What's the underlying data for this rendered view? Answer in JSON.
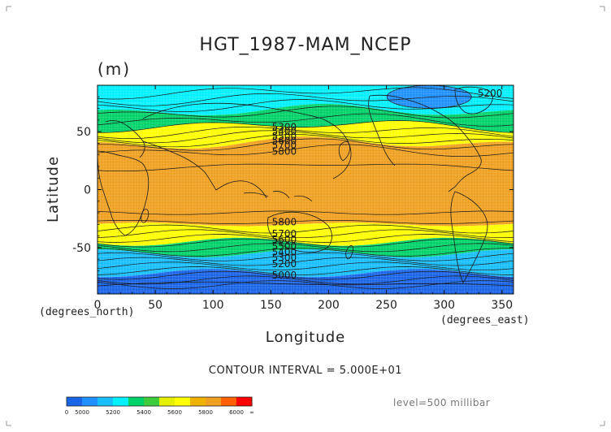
{
  "chart_data": {
    "type": "heatmap",
    "title": "HGT_1987-MAM_NCEP",
    "units": "(m)",
    "xlabel": "Longitude",
    "ylabel": "Latitude",
    "x_unit_label": "(degrees_east)",
    "y_unit_label": "(degrees_north)",
    "xlim": [
      0,
      360
    ],
    "ylim": [
      -90,
      90
    ],
    "x_ticks": [
      0,
      50,
      100,
      150,
      200,
      250,
      300,
      350
    ],
    "y_ticks": [
      -50,
      0,
      50
    ],
    "contour_interval_text": "CONTOUR INTERVAL = 5.000E+01",
    "level_text": "level=500 millibar",
    "grid": false,
    "colorbar": {
      "labels": [
        "0",
        "5000",
        "5200",
        "5400",
        "5600",
        "5800",
        "6000",
        "∞"
      ],
      "colors": [
        "#1a64e8",
        "#1e90ff",
        "#18bfff",
        "#00f0ff",
        "#00d26a",
        "#3ccc3c",
        "#e4f000",
        "#ffff00",
        "#efb200",
        "#efa020",
        "#ff6000",
        "#ff0000"
      ]
    },
    "bands": [
      {
        "lat_from": 90,
        "lat_to": 80,
        "value_range": [
          5300,
          5400
        ],
        "color": "#00f0ff"
      },
      {
        "lat_from": 80,
        "lat_to": 68,
        "value_range": [
          5400,
          5500
        ],
        "color": "#00f0ff"
      },
      {
        "lat_from": 68,
        "lat_to": 55,
        "value_range": [
          5500,
          5600
        ],
        "color": "#00d26a"
      },
      {
        "lat_from": 55,
        "lat_to": 40,
        "value_range": [
          5600,
          5800
        ],
        "color": "#ffff00"
      },
      {
        "lat_from": 40,
        "lat_to": -30,
        "value_range": [
          5800,
          6000
        ],
        "color": "#efa020"
      },
      {
        "lat_from": -30,
        "lat_to": -45,
        "value_range": [
          5600,
          5800
        ],
        "color": "#ffff00"
      },
      {
        "lat_from": -45,
        "lat_to": -55,
        "value_range": [
          5400,
          5600
        ],
        "color": "#00d26a"
      },
      {
        "lat_from": -55,
        "lat_to": -72,
        "value_range": [
          5200,
          5400
        ],
        "color": "#18bfff"
      },
      {
        "lat_from": -72,
        "lat_to": -90,
        "value_range": [
          5000,
          5200
        ],
        "color": "#1a64e8"
      }
    ],
    "features": [
      {
        "type": "low",
        "lon": 287,
        "lat": 80,
        "value": 5200,
        "color": "#1e90ff"
      }
    ],
    "contour_labels": [
      {
        "text": "5200",
        "lon": 298,
        "lat": 83
      },
      {
        "text": "5300",
        "lon": 120,
        "lat": 54
      },
      {
        "text": "5400",
        "lon": 120,
        "lat": 50
      },
      {
        "text": "5500",
        "lon": 120,
        "lat": 46
      },
      {
        "text": "5600",
        "lon": 120,
        "lat": 42
      },
      {
        "text": "5700",
        "lon": 120,
        "lat": 38
      },
      {
        "text": "5800",
        "lon": 120,
        "lat": 33
      },
      {
        "text": "5800",
        "lon": 120,
        "lat": -28
      },
      {
        "text": "5700",
        "lon": 120,
        "lat": -38
      },
      {
        "text": "5600",
        "lon": 120,
        "lat": -43
      },
      {
        "text": "5500",
        "lon": 120,
        "lat": -49
      },
      {
        "text": "5400",
        "lon": 120,
        "lat": -54
      },
      {
        "text": "5300",
        "lon": 120,
        "lat": -59
      },
      {
        "text": "5200",
        "lon": 120,
        "lat": -64
      },
      {
        "text": "5000",
        "lon": 120,
        "lat": -74
      }
    ],
    "contour_lines_lat": [
      84,
      78,
      72,
      66,
      60,
      55,
      50,
      46,
      42,
      38,
      33,
      20,
      -20,
      -28,
      -34,
      -38,
      -42,
      -46,
      -50,
      -54,
      -58,
      -62,
      -66,
      -70,
      -74,
      -78,
      -82
    ]
  }
}
